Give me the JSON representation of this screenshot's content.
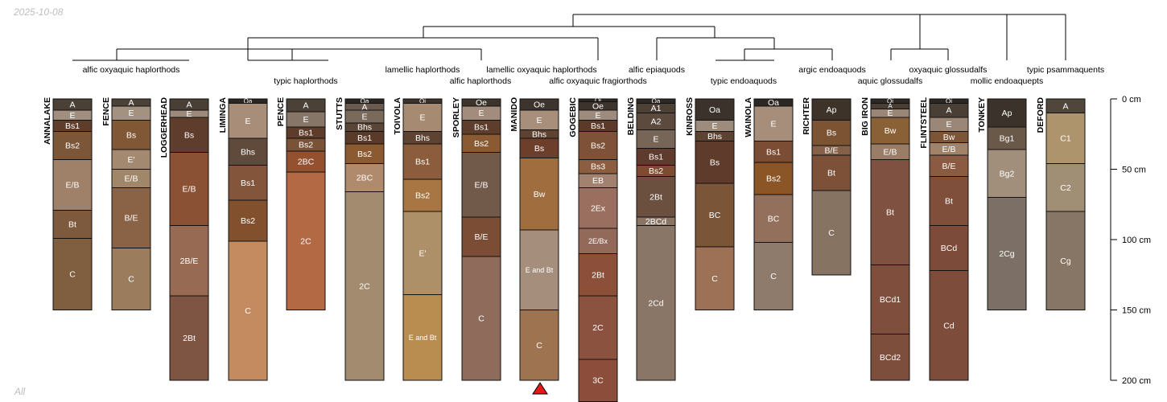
{
  "header": {
    "date": "2025-10-08"
  },
  "footer": {
    "label": "All"
  },
  "dendrogram": {
    "taxa": [
      {
        "label": "alfic oxyaquic haplorthods",
        "row": 0
      },
      {
        "label": "typic haplorthods",
        "row": 1
      },
      {
        "label": "lamellic haplorthods",
        "row": 0
      },
      {
        "label": "alfic haplorthods",
        "row": 1
      },
      {
        "label": "lamellic oxyaquic haplorthods",
        "row": 0
      },
      {
        "label": "alfic oxyaquic fragiorthods",
        "row": 1
      },
      {
        "label": "alfic epiaquods",
        "row": 0
      },
      {
        "label": "typic endoaquods",
        "row": 1
      },
      {
        "label": "argic endoaquods",
        "row": 0
      },
      {
        "label": "aquic glossudalfs",
        "row": 1
      },
      {
        "label": "oxyaquic glossudalfs",
        "row": 0
      },
      {
        "label": "mollic endoaquepts",
        "row": 1
      },
      {
        "label": "typic psammaquents",
        "row": 0
      }
    ]
  },
  "depth_axis": {
    "ticks": [
      "0 cm",
      "50 cm",
      "100 cm",
      "150 cm",
      "200 cm"
    ]
  },
  "chart_data": {
    "type": "soil_profile_sketch",
    "depth_unit": "cm",
    "depth_range": [
      0,
      200
    ],
    "profiles": [
      {
        "name": "ANNALAKE",
        "horizons": [
          {
            "name": "A",
            "top": 0,
            "bottom": 8,
            "color": "#4b4035"
          },
          {
            "name": "E",
            "top": 8,
            "bottom": 15,
            "color": "#a08e7f"
          },
          {
            "name": "Bs1",
            "top": 15,
            "bottom": 23,
            "color": "#5e3d2b"
          },
          {
            "name": "Bs2",
            "top": 23,
            "bottom": 43,
            "color": "#7c5638"
          },
          {
            "name": "E/B",
            "top": 43,
            "bottom": 79,
            "color": "#9e8168"
          },
          {
            "name": "Bt",
            "top": 79,
            "bottom": 99,
            "color": "#7d5a3d"
          },
          {
            "name": "C",
            "top": 99,
            "bottom": 150,
            "color": "#805e40"
          }
        ]
      },
      {
        "name": "FENCE",
        "horizons": [
          {
            "name": "A",
            "top": 0,
            "bottom": 5,
            "color": "#4d4238"
          },
          {
            "name": "E",
            "top": 5,
            "bottom": 15,
            "color": "#a49281"
          },
          {
            "name": "Bs",
            "top": 15,
            "bottom": 36,
            "color": "#805836"
          },
          {
            "name": "E'",
            "top": 36,
            "bottom": 50,
            "color": "#a38970"
          },
          {
            "name": "E/B",
            "top": 50,
            "bottom": 63,
            "color": "#a08769"
          },
          {
            "name": "B/E",
            "top": 63,
            "bottom": 106,
            "color": "#8a6347"
          },
          {
            "name": "C",
            "top": 106,
            "bottom": 150,
            "color": "#9b7c5d"
          }
        ]
      },
      {
        "name": "LOGGERHEAD",
        "horizons": [
          {
            "name": "A",
            "top": 0,
            "bottom": 8,
            "color": "#4a3f35"
          },
          {
            "name": "E",
            "top": 8,
            "bottom": 13,
            "color": "#9c8b7c"
          },
          {
            "name": "Bs",
            "top": 13,
            "bottom": 38,
            "color": "#5f3d2c"
          },
          {
            "name": "E/B",
            "top": 38,
            "bottom": 90,
            "color": "#8b5135"
          },
          {
            "name": "2B/E",
            "top": 90,
            "bottom": 140,
            "color": "#976b53"
          },
          {
            "name": "2Bt",
            "top": 140,
            "bottom": 200,
            "color": "#7e5443"
          }
        ]
      },
      {
        "name": "LIMINGA",
        "horizons": [
          {
            "name": "Oa",
            "top": 0,
            "bottom": 3,
            "color": "#2b2622"
          },
          {
            "name": "E",
            "top": 3,
            "bottom": 28,
            "color": "#a88d79"
          },
          {
            "name": "Bhs",
            "top": 28,
            "bottom": 47,
            "color": "#5f4a3c"
          },
          {
            "name": "Bs1",
            "top": 47,
            "bottom": 72,
            "color": "#83553a"
          },
          {
            "name": "Bs2",
            "top": 72,
            "bottom": 101,
            "color": "#82502d"
          },
          {
            "name": "C",
            "top": 101,
            "bottom": 200,
            "color": "#c48b61"
          }
        ]
      },
      {
        "name": "PENCE",
        "horizons": [
          {
            "name": "A",
            "top": 0,
            "bottom": 9,
            "color": "#4b4136"
          },
          {
            "name": "E",
            "top": 9,
            "bottom": 20,
            "color": "#877667"
          },
          {
            "name": "Bs1",
            "top": 20,
            "bottom": 28,
            "color": "#5e3c2b"
          },
          {
            "name": "Bs2",
            "top": 28,
            "bottom": 37,
            "color": "#7a5236"
          },
          {
            "name": "2BC",
            "top": 37,
            "bottom": 52,
            "color": "#935130"
          },
          {
            "name": "2C",
            "top": 52,
            "bottom": 150,
            "color": "#b36a44"
          }
        ]
      },
      {
        "name": "STUTTS",
        "horizons": [
          {
            "name": "Oa",
            "top": 0,
            "bottom": 3,
            "color": "#2c2723"
          },
          {
            "name": "A",
            "top": 3,
            "bottom": 8,
            "color": "#6a5b4e"
          },
          {
            "name": "E",
            "top": 8,
            "bottom": 17,
            "color": "#7a6a5c"
          },
          {
            "name": "Bhs",
            "top": 17,
            "bottom": 23,
            "color": "#5a4536"
          },
          {
            "name": "Bs1",
            "top": 23,
            "bottom": 32,
            "color": "#5a3b2a"
          },
          {
            "name": "Bs2",
            "top": 32,
            "bottom": 46,
            "color": "#8b5a30"
          },
          {
            "name": "2BC",
            "top": 46,
            "bottom": 66,
            "color": "#b08a6c"
          },
          {
            "name": "2C",
            "top": 66,
            "bottom": 200,
            "color": "#a28b6e"
          }
        ]
      },
      {
        "name": "TOIVOLA",
        "horizons": [
          {
            "name": "Oi",
            "top": 0,
            "bottom": 3,
            "color": "#3a322b"
          },
          {
            "name": "E",
            "top": 3,
            "bottom": 23,
            "color": "#a68a72"
          },
          {
            "name": "Bhs",
            "top": 23,
            "bottom": 32,
            "color": "#5e4332"
          },
          {
            "name": "Bs1",
            "top": 32,
            "bottom": 57,
            "color": "#8c5d3c"
          },
          {
            "name": "Bs2",
            "top": 57,
            "bottom": 80,
            "color": "#a87642"
          },
          {
            "name": "E'",
            "top": 80,
            "bottom": 139,
            "color": "#ad8f68"
          },
          {
            "name": "E and Bt",
            "top": 139,
            "bottom": 200,
            "color": "#b98d4f"
          }
        ]
      },
      {
        "name": "SPORLEY",
        "horizons": [
          {
            "name": "Oe",
            "top": 0,
            "bottom": 5,
            "color": "#3c332b"
          },
          {
            "name": "E",
            "top": 5,
            "bottom": 15,
            "color": "#a38c7c"
          },
          {
            "name": "Bs1",
            "top": 15,
            "bottom": 25,
            "color": "#5d3d2c"
          },
          {
            "name": "Bs2",
            "top": 25,
            "bottom": 38,
            "color": "#8a5a33"
          },
          {
            "name": "E/B",
            "top": 38,
            "bottom": 84,
            "color": "#725a4b"
          },
          {
            "name": "B/E",
            "top": 84,
            "bottom": 112,
            "color": "#7b4d34"
          },
          {
            "name": "C",
            "top": 112,
            "bottom": 200,
            "color": "#8e6b5b"
          }
        ]
      },
      {
        "name": "MANIDO",
        "horizons": [
          {
            "name": "Oe",
            "top": 0,
            "bottom": 8,
            "color": "#3d342d"
          },
          {
            "name": "E",
            "top": 8,
            "bottom": 22,
            "color": "#a88f7c"
          },
          {
            "name": "Bhs",
            "top": 22,
            "bottom": 28,
            "color": "#5e4333"
          },
          {
            "name": "Bs",
            "top": 28,
            "bottom": 42,
            "color": "#6d3f2a"
          },
          {
            "name": "Bw",
            "top": 42,
            "bottom": 93,
            "color": "#a06d3f"
          },
          {
            "name": "E and Bt",
            "top": 93,
            "bottom": 150,
            "color": "#a58f7c"
          },
          {
            "name": "C",
            "top": 150,
            "bottom": 200,
            "color": "#9e7450"
          }
        ]
      },
      {
        "name": "GOGEBIC",
        "horizons": [
          {
            "name": "Oi",
            "top": 0,
            "bottom": 2,
            "color": "#2d2824"
          },
          {
            "name": "Oe",
            "top": 2,
            "bottom": 8,
            "color": "#3c332c"
          },
          {
            "name": "E",
            "top": 8,
            "bottom": 15,
            "color": "#9e8b7d"
          },
          {
            "name": "Bs1",
            "top": 15,
            "bottom": 23,
            "color": "#5b3a2a"
          },
          {
            "name": "Bs2",
            "top": 23,
            "bottom": 43,
            "color": "#7d5239"
          },
          {
            "name": "Bs3",
            "top": 43,
            "bottom": 53,
            "color": "#8c5d41"
          },
          {
            "name": "EB",
            "top": 53,
            "bottom": 63,
            "color": "#a0826e"
          },
          {
            "name": "2Ex",
            "top": 63,
            "bottom": 92,
            "color": "#9a6f5f"
          },
          {
            "name": "2E/Bx",
            "top": 92,
            "bottom": 110,
            "color": "#936a59"
          },
          {
            "name": "2Bt",
            "top": 110,
            "bottom": 140,
            "color": "#8b4f3a"
          },
          {
            "name": "2C",
            "top": 140,
            "bottom": 185,
            "color": "#8b5240"
          },
          {
            "name": "3C",
            "top": 185,
            "bottom": 215,
            "color": "#8c4e3a"
          }
        ]
      },
      {
        "name": "BELDING",
        "horizons": [
          {
            "name": "Oa",
            "top": 0,
            "bottom": 3,
            "color": "#2d2824"
          },
          {
            "name": "A1",
            "top": 3,
            "bottom": 10,
            "color": "#4d4136"
          },
          {
            "name": "A2",
            "top": 10,
            "bottom": 22,
            "color": "#5d4a3e"
          },
          {
            "name": "E",
            "top": 22,
            "bottom": 35,
            "color": "#776658"
          },
          {
            "name": "Bs1",
            "top": 35,
            "bottom": 47,
            "color": "#5e3b2c"
          },
          {
            "name": "Bs2",
            "top": 47,
            "bottom": 55,
            "color": "#7d4b31"
          },
          {
            "name": "2Bt",
            "top": 55,
            "bottom": 84,
            "color": "#6b5040"
          },
          {
            "name": "2BCd",
            "top": 84,
            "bottom": 90,
            "color": "#8a7565"
          },
          {
            "name": "2Cd",
            "top": 90,
            "bottom": 200,
            "color": "#8a7666"
          }
        ]
      },
      {
        "name": "KINROSS",
        "horizons": [
          {
            "name": "Oa",
            "top": 0,
            "bottom": 15,
            "color": "#3b322b"
          },
          {
            "name": "E",
            "top": 15,
            "bottom": 23,
            "color": "#9d8b7c"
          },
          {
            "name": "Bhs",
            "top": 23,
            "bottom": 30,
            "color": "#5c4233"
          },
          {
            "name": "Bs",
            "top": 30,
            "bottom": 60,
            "color": "#5e3b2b"
          },
          {
            "name": "BC",
            "top": 60,
            "bottom": 105,
            "color": "#7b5537"
          },
          {
            "name": "C",
            "top": 105,
            "bottom": 150,
            "color": "#9c7155"
          }
        ]
      },
      {
        "name": "WAINOLA",
        "horizons": [
          {
            "name": "Oa",
            "top": 0,
            "bottom": 5,
            "color": "#2c2723"
          },
          {
            "name": "E",
            "top": 5,
            "bottom": 30,
            "color": "#a68e7b"
          },
          {
            "name": "Bs1",
            "top": 30,
            "bottom": 45,
            "color": "#7a4d34"
          },
          {
            "name": "Bs2",
            "top": 45,
            "bottom": 68,
            "color": "#8b5526"
          },
          {
            "name": "BC",
            "top": 68,
            "bottom": 102,
            "color": "#93705b"
          },
          {
            "name": "C",
            "top": 102,
            "bottom": 150,
            "color": "#8e7b6c"
          }
        ]
      },
      {
        "name": "RICHTER",
        "horizons": [
          {
            "name": "Ap",
            "top": 0,
            "bottom": 15,
            "color": "#3d3328"
          },
          {
            "name": "Bs",
            "top": 15,
            "bottom": 33,
            "color": "#7d5433"
          },
          {
            "name": "B/E",
            "top": 33,
            "bottom": 40,
            "color": "#846148"
          },
          {
            "name": "Bt",
            "top": 40,
            "bottom": 65,
            "color": "#7c5138"
          },
          {
            "name": "C",
            "top": 65,
            "bottom": 125,
            "color": "#877361"
          }
        ]
      },
      {
        "name": "BIG IRON",
        "horizons": [
          {
            "name": "Oi",
            "top": 0,
            "bottom": 3,
            "color": "#2d2823"
          },
          {
            "name": "A",
            "top": 3,
            "bottom": 7,
            "color": "#4a3e33"
          },
          {
            "name": "E",
            "top": 7,
            "bottom": 13,
            "color": "#9a8677"
          },
          {
            "name": "Bw",
            "top": 13,
            "bottom": 32,
            "color": "#8a6137"
          },
          {
            "name": "E/B",
            "top": 32,
            "bottom": 43,
            "color": "#9a7d66"
          },
          {
            "name": "Bt",
            "top": 43,
            "bottom": 118,
            "color": "#7f5141"
          },
          {
            "name": "BCd1",
            "top": 118,
            "bottom": 167,
            "color": "#7f4e3c"
          },
          {
            "name": "BCd2",
            "top": 167,
            "bottom": 200,
            "color": "#7e4e3c"
          }
        ]
      },
      {
        "name": "FLINTSTEEL",
        "horizons": [
          {
            "name": "Oi",
            "top": 0,
            "bottom": 3,
            "color": "#2c2723"
          },
          {
            "name": "A",
            "top": 3,
            "bottom": 13,
            "color": "#4a3f35"
          },
          {
            "name": "E",
            "top": 13,
            "bottom": 23,
            "color": "#9a8777"
          },
          {
            "name": "Bw",
            "top": 23,
            "bottom": 31,
            "color": "#7c5436"
          },
          {
            "name": "E/B",
            "top": 31,
            "bottom": 40,
            "color": "#a08369"
          },
          {
            "name": "B/E",
            "top": 40,
            "bottom": 55,
            "color": "#8b5a43"
          },
          {
            "name": "Bt",
            "top": 55,
            "bottom": 90,
            "color": "#804f3c"
          },
          {
            "name": "BCd",
            "top": 90,
            "bottom": 122,
            "color": "#7c4b39"
          },
          {
            "name": "Cd",
            "top": 122,
            "bottom": 200,
            "color": "#7d4c3b"
          }
        ]
      },
      {
        "name": "TONKEY",
        "horizons": [
          {
            "name": "Ap",
            "top": 0,
            "bottom": 20,
            "color": "#3a322b"
          },
          {
            "name": "Bg1",
            "top": 20,
            "bottom": 36,
            "color": "#6a5848"
          },
          {
            "name": "Bg2",
            "top": 36,
            "bottom": 70,
            "color": "#a18f7c"
          },
          {
            "name": "2Cg",
            "top": 70,
            "bottom": 150,
            "color": "#7c7066"
          }
        ]
      },
      {
        "name": "DEFORD",
        "horizons": [
          {
            "name": "A",
            "top": 0,
            "bottom": 10,
            "color": "#50463c"
          },
          {
            "name": "C1",
            "top": 10,
            "bottom": 46,
            "color": "#ad946d"
          },
          {
            "name": "C2",
            "top": 46,
            "bottom": 80,
            "color": "#a08e75"
          },
          {
            "name": "Cg",
            "top": 80,
            "bottom": 150,
            "color": "#877565"
          }
        ]
      }
    ],
    "markers": [
      {
        "profile": "MANIDO",
        "depth": 200,
        "shape": "triangle",
        "color": "#e11919"
      }
    ]
  }
}
